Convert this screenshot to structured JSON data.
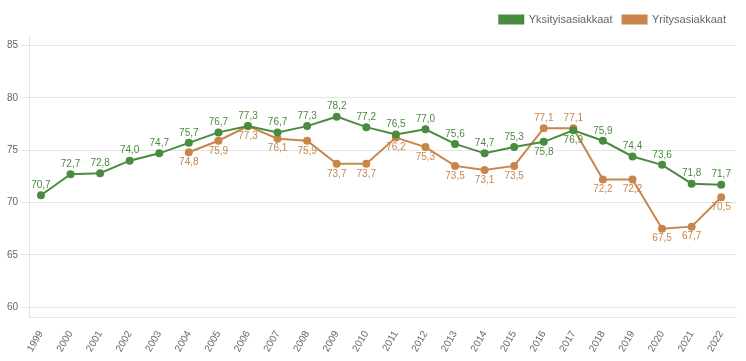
{
  "chart_data": {
    "type": "line",
    "x": [
      1999,
      2000,
      2001,
      2002,
      2003,
      2004,
      2005,
      2006,
      2007,
      2008,
      2009,
      2010,
      2011,
      2012,
      2013,
      2014,
      2015,
      2016,
      2017,
      2018,
      2019,
      2020,
      2021,
      2022
    ],
    "xlim": [
      1998.6,
      2022.5
    ],
    "xticks": [
      1999,
      2000,
      2001,
      2002,
      2003,
      2004,
      2005,
      2006,
      2007,
      2008,
      2009,
      2010,
      2011,
      2012,
      2013,
      2014,
      2015,
      2016,
      2017,
      2018,
      2019,
      2020,
      2021,
      2022
    ],
    "ylim": [
      59,
      86
    ],
    "yticks": [
      60,
      65,
      70,
      75,
      80,
      85
    ],
    "grid": "y",
    "legend": "upper right",
    "data_labels": true,
    "marker": "circle",
    "series": [
      {
        "name": "Yksityisasiakkaat",
        "color": "#4a8c3f",
        "values": [
          70.7,
          72.7,
          72.8,
          74.0,
          74.7,
          75.7,
          76.7,
          77.3,
          76.7,
          77.3,
          78.2,
          77.2,
          76.5,
          77.0,
          75.6,
          74.7,
          75.3,
          75.8,
          76.9,
          75.9,
          74.4,
          73.6,
          71.8,
          71.7
        ],
        "value_labels": [
          "70,7",
          "72,7",
          "72,8",
          "74,0",
          "74,7",
          "75,7",
          "76,7",
          "77,3",
          "76,7",
          "77,3",
          "78,2",
          "77,2",
          "76,5",
          "77,0",
          "75,6",
          "74,7",
          "75,3",
          "75,8",
          "76,9",
          "75,9",
          "74,4",
          "73,6",
          "71,8",
          "71,7"
        ]
      },
      {
        "name": "Yritysasiakkaat",
        "color": "#c8864b",
        "values": [
          null,
          null,
          null,
          null,
          null,
          74.8,
          75.9,
          77.3,
          76.1,
          75.9,
          73.7,
          73.7,
          76.2,
          75.3,
          73.5,
          73.1,
          73.5,
          77.1,
          77.1,
          72.2,
          72.2,
          67.5,
          67.7,
          70.5
        ],
        "value_labels": [
          null,
          null,
          null,
          null,
          null,
          "74,8",
          "75,9",
          "77,3",
          "76,1",
          "75,9",
          "73,7",
          "73,7",
          "76,2",
          "75,3",
          "73,5",
          "73,1",
          "73,5",
          "77,1",
          "77,1",
          "72,2",
          "72,2",
          "67,5",
          "67,7",
          "70,5"
        ]
      }
    ]
  }
}
